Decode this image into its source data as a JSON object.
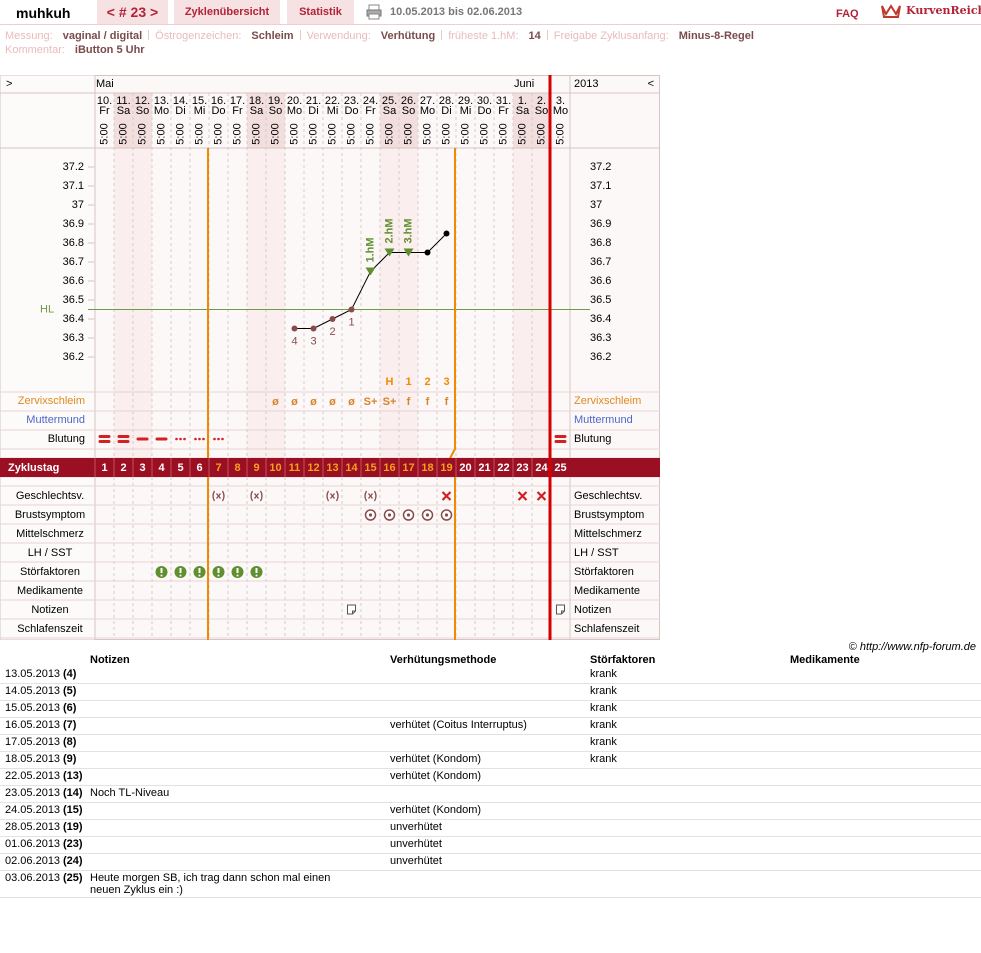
{
  "header": {
    "user": "muhkuh",
    "cycle_nav": "< # 23 >",
    "tabs": [
      "Zyklenübersicht",
      "Statistik"
    ],
    "range": "10.05.2013 bis 02.06.2013",
    "faq": "FAQ",
    "brand": "KurvenReich"
  },
  "info": {
    "fields": [
      {
        "label": "Messung:",
        "value": "vaginal / digital"
      },
      {
        "label": "Östrogenzeichen:",
        "value": "Schleim"
      },
      {
        "label": "Verwendung:",
        "value": "Verhütung"
      },
      {
        "label": "früheste 1.hM:",
        "value": "14"
      },
      {
        "label": "Freigabe Zyklusanfang:",
        "value": "Minus-8-Regel"
      }
    ],
    "comment": {
      "label": "Kommentar:",
      "value": "iButton 5 Uhr"
    }
  },
  "calendar": {
    "nav_prev": ">",
    "nav_next": "<",
    "months": [
      "Mai",
      "Juni"
    ],
    "year": "2013",
    "days": [
      {
        "date": "10.",
        "weekday": "Fr",
        "time": "5:00"
      },
      {
        "date": "11.",
        "weekday": "Sa",
        "time": "5:00"
      },
      {
        "date": "12.",
        "weekday": "So",
        "time": "5:00"
      },
      {
        "date": "13.",
        "weekday": "Mo",
        "time": "5:00"
      },
      {
        "date": "14.",
        "weekday": "Di",
        "time": "5:00"
      },
      {
        "date": "15.",
        "weekday": "Mi",
        "time": "5:00"
      },
      {
        "date": "16.",
        "weekday": "Do",
        "time": "5:00"
      },
      {
        "date": "17.",
        "weekday": "Fr",
        "time": "5:00"
      },
      {
        "date": "18.",
        "weekday": "Sa",
        "time": "5:00"
      },
      {
        "date": "19.",
        "weekday": "So",
        "time": "5:00"
      },
      {
        "date": "20.",
        "weekday": "Mo",
        "time": "5:00"
      },
      {
        "date": "21.",
        "weekday": "Di",
        "time": "5:00"
      },
      {
        "date": "22.",
        "weekday": "Mi",
        "time": "5:00"
      },
      {
        "date": "23.",
        "weekday": "Do",
        "time": "5:00"
      },
      {
        "date": "24.",
        "weekday": "Fr",
        "time": "5:00"
      },
      {
        "date": "25.",
        "weekday": "Sa",
        "time": "5:00"
      },
      {
        "date": "26.",
        "weekday": "So",
        "time": "5:00"
      },
      {
        "date": "27.",
        "weekday": "Mo",
        "time": "5:00"
      },
      {
        "date": "28.",
        "weekday": "Di",
        "time": "5:00"
      },
      {
        "date": "29.",
        "weekday": "Mi",
        "time": "5:00"
      },
      {
        "date": "30.",
        "weekday": "Do",
        "time": "5:00"
      },
      {
        "date": "31.",
        "weekday": "Fr",
        "time": "5:00"
      },
      {
        "date": "1.",
        "weekday": "Sa",
        "time": "5:00"
      },
      {
        "date": "2.",
        "weekday": "So",
        "time": "5:00"
      },
      {
        "date": "3.",
        "weekday": "Mo",
        "time": "5:00"
      }
    ]
  },
  "chart_data": {
    "type": "line",
    "color": "#000000",
    "values": [
      null,
      null,
      null,
      null,
      null,
      null,
      null,
      null,
      null,
      null,
      36.35,
      36.35,
      36.4,
      36.45,
      36.65,
      36.75,
      36.75,
      36.75,
      36.85,
      null,
      null,
      null,
      null,
      null,
      null
    ],
    "point_labels": [
      null,
      null,
      null,
      null,
      null,
      null,
      null,
      null,
      null,
      null,
      "4",
      "3",
      "2",
      "1",
      null,
      null,
      null,
      null,
      null,
      null,
      null,
      null,
      null,
      null,
      null
    ],
    "hm_labels": [
      null,
      null,
      null,
      null,
      null,
      null,
      null,
      null,
      null,
      null,
      null,
      null,
      null,
      null,
      "1.hM",
      "2.hM",
      "3.hM",
      null,
      null,
      null,
      null,
      null,
      null,
      null,
      null
    ],
    "ylim": [
      36.05,
      37.3
    ],
    "yticks": [
      36.2,
      36.3,
      36.4,
      36.5,
      36.6,
      36.7,
      36.8,
      36.9,
      37,
      37.1,
      37.2
    ],
    "hline": {
      "label": "HL",
      "value": 36.45,
      "color": "#6f9a4a"
    }
  },
  "rows": {
    "peak_labels": [
      null,
      null,
      null,
      null,
      null,
      null,
      null,
      null,
      null,
      null,
      null,
      null,
      null,
      null,
      null,
      "H",
      "1",
      "2",
      "3",
      null,
      null,
      null,
      null,
      null,
      null
    ],
    "mucus_label": "Zervixschleim",
    "mucus": [
      null,
      null,
      null,
      null,
      null,
      null,
      null,
      null,
      null,
      "ø",
      "ø",
      "ø",
      "ø",
      "ø",
      "S+",
      "S+",
      "f",
      "f",
      "f",
      null,
      null,
      null,
      null,
      null,
      null
    ],
    "cervix_label": "Muttermund",
    "bleeding_label": "Blutung",
    "cycle_day_label": "Zyklustag",
    "cycle_days": [
      1,
      2,
      3,
      4,
      5,
      6,
      7,
      8,
      9,
      10,
      11,
      12,
      13,
      14,
      15,
      16,
      17,
      18,
      19,
      20,
      21,
      22,
      23,
      24,
      25
    ],
    "side_rows": [
      "Geschlechtsv.",
      "Brustsymptom",
      "Mittelschmerz",
      "LH / SST",
      "Störfaktoren",
      "Medikamente",
      "Notizen",
      "Schlafenszeit"
    ]
  },
  "credit": "© http://www.nfp-forum.de",
  "table": {
    "headers": [
      "Notizen",
      "Verhütungsmethode",
      "Störfaktoren",
      "Medikamente"
    ],
    "rows": [
      {
        "date": "13.05.2013",
        "day": "(4)",
        "disturbance": "krank"
      },
      {
        "date": "14.05.2013",
        "day": "(5)",
        "disturbance": "krank"
      },
      {
        "date": "15.05.2013",
        "day": "(6)",
        "disturbance": "krank"
      },
      {
        "date": "16.05.2013",
        "day": "(7)",
        "method": "verhütet (Coitus Interruptus)",
        "disturbance": "krank"
      },
      {
        "date": "17.05.2013",
        "day": "(8)",
        "disturbance": "krank"
      },
      {
        "date": "18.05.2013",
        "day": "(9)",
        "method": "verhütet (Kondom)",
        "disturbance": "krank"
      },
      {
        "date": "22.05.2013",
        "day": "(13)",
        "method": "verhütet (Kondom)"
      },
      {
        "date": "23.05.2013",
        "day": "(14)",
        "notes": "Noch TL-Niveau"
      },
      {
        "date": "24.05.2013",
        "day": "(15)",
        "method": "verhütet (Kondom)"
      },
      {
        "date": "28.05.2013",
        "day": "(19)",
        "method": "unverhütet"
      },
      {
        "date": "01.06.2013",
        "day": "(23)",
        "method": "unverhütet"
      },
      {
        "date": "02.06.2013",
        "day": "(24)",
        "method": "unverhütet"
      },
      {
        "date": "03.06.2013",
        "day": "(25)",
        "notes": "Heute morgen SB, ich trag dann schon mal einen neuen Zyklus ein :)"
      }
    ]
  }
}
